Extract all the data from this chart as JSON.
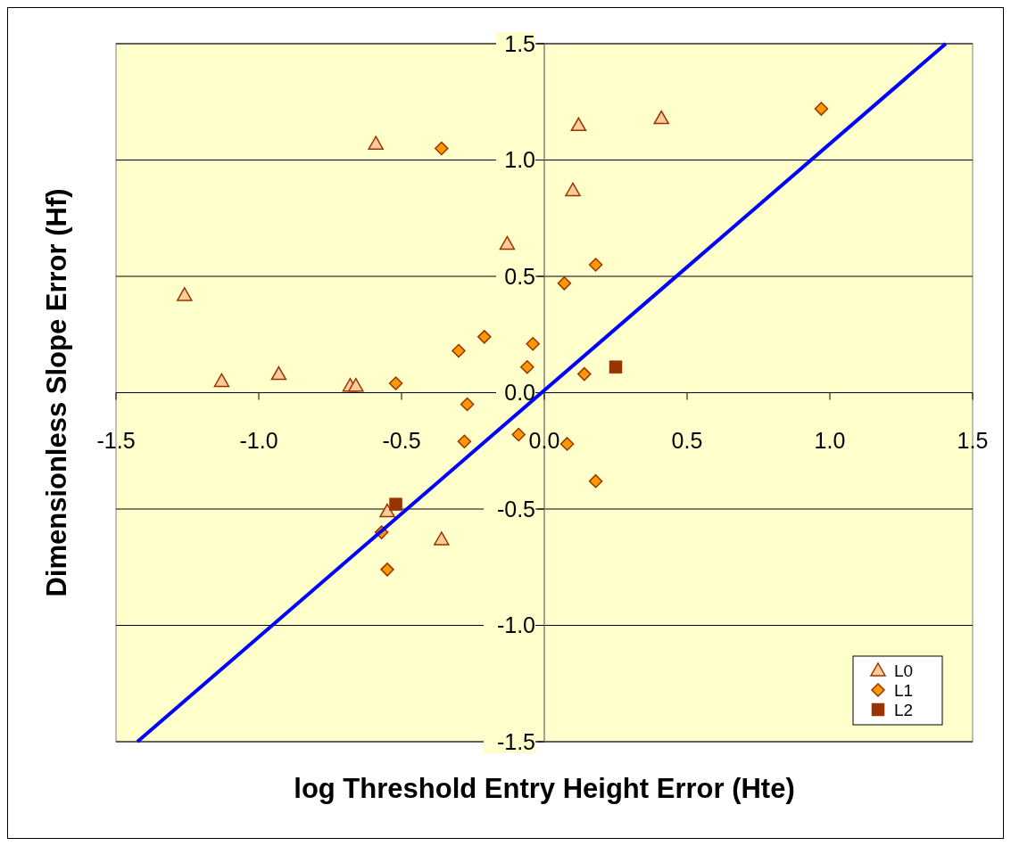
{
  "chart_data": {
    "type": "scatter",
    "xlabel": "log Threshold Entry Height Error (Hte)",
    "ylabel": "Dimensionless Slope Error (Hf)",
    "xlim": [
      -1.5,
      1.5
    ],
    "ylim": [
      -1.5,
      1.5
    ],
    "xticks": [
      -1.5,
      {
        "value": -1,
        "label": "-1.0"
      },
      -0.5,
      {
        "value": 0,
        "label": "0.0"
      },
      0.5,
      {
        "value": 1,
        "label": "1.0"
      },
      1.5
    ],
    "yticks": [
      -1.5,
      {
        "value": -1,
        "label": "-1.0"
      },
      -0.5,
      {
        "value": 0,
        "label": "0.0"
      },
      0.5,
      {
        "value": 1,
        "label": "1.0"
      },
      1.5
    ],
    "grid": "y",
    "legend": "bottom right",
    "series": [
      {
        "name": "L0",
        "color": "#ffcc99",
        "marker": "triangle",
        "x": [
          -1.26,
          -1.13,
          -0.93,
          -0.68,
          -0.66,
          -0.59,
          -0.13,
          0.12,
          0.1,
          0.41,
          -0.55,
          -0.36
        ],
        "values": [
          0.42,
          0.05,
          0.08,
          0.03,
          0.03,
          1.07,
          0.64,
          1.15,
          0.87,
          1.18,
          -0.51,
          -0.63
        ]
      },
      {
        "name": "L1",
        "color": "#ff9900",
        "marker": "diamond",
        "x": [
          -0.36,
          0.97,
          -0.52,
          -0.3,
          -0.21,
          -0.04,
          -0.06,
          0.07,
          0.18,
          0.14,
          -0.27,
          -0.28,
          -0.09,
          0.08,
          0.18,
          -0.57,
          -0.55
        ],
        "values": [
          1.05,
          1.22,
          0.04,
          0.18,
          0.24,
          0.21,
          0.11,
          0.47,
          0.55,
          0.08,
          -0.05,
          -0.21,
          -0.18,
          -0.22,
          -0.38,
          -0.6,
          -0.76
        ]
      },
      {
        "name": "L2",
        "color": "#993300",
        "marker": "square",
        "x": [
          0.25,
          -0.52
        ],
        "values": [
          0.11,
          -0.48
        ]
      },
      {
        "type": "line",
        "color": "#0000ff",
        "marker": "none",
        "line_style": "solid",
        "x": [
          -1.425,
          1.406
        ],
        "values": [
          -1.5,
          1.5
        ]
      }
    ]
  }
}
